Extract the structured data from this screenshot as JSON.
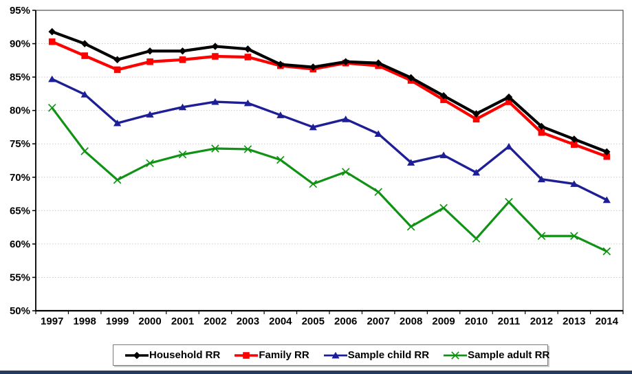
{
  "chart_data": {
    "type": "line",
    "title": "",
    "xlabel": "",
    "ylabel": "",
    "ylim": [
      50,
      95
    ],
    "ytick_step": 5,
    "grid": "horizontal-dotted",
    "legend_position": "bottom",
    "x": [
      1997,
      1998,
      1999,
      2000,
      2001,
      2002,
      2003,
      2004,
      2005,
      2006,
      2007,
      2008,
      2009,
      2010,
      2011,
      2012,
      2013,
      2014
    ],
    "x_tick_labels": [
      "1997",
      "1998",
      "1999",
      "2000",
      "2001",
      "2002",
      "2003",
      "2004",
      "2005",
      "2006",
      "2007",
      "2008",
      "2009",
      "2010",
      "2011",
      "2012",
      "2013",
      "2014"
    ],
    "y_tick_labels": [
      "95%",
      "90%",
      "85%",
      "80%",
      "75%",
      "70%",
      "65%",
      "60%",
      "55%",
      "50%"
    ],
    "series": [
      {
        "name": "Household RR",
        "color": "#000000",
        "marker": "diamond",
        "values": [
          91.8,
          90.0,
          87.6,
          88.9,
          88.9,
          89.6,
          89.2,
          86.9,
          86.5,
          87.3,
          87.1,
          84.9,
          82.2,
          79.5,
          82.0,
          77.6,
          75.7,
          73.8
        ]
      },
      {
        "name": "Family RR",
        "color": "#fe0000",
        "marker": "square",
        "values": [
          90.3,
          88.2,
          86.1,
          87.3,
          87.6,
          88.1,
          88.0,
          86.7,
          86.2,
          87.1,
          86.7,
          84.5,
          81.6,
          78.7,
          81.3,
          76.7,
          74.9,
          73.1
        ]
      },
      {
        "name": "Sample child RR",
        "color": "#1e1e96",
        "marker": "triangle",
        "values": [
          84.7,
          82.4,
          78.1,
          79.4,
          80.5,
          81.3,
          81.1,
          79.3,
          77.5,
          78.7,
          76.5,
          72.2,
          73.3,
          70.7,
          74.6,
          69.7,
          69.0,
          66.6
        ]
      },
      {
        "name": "Sample adult RR",
        "color": "#109314",
        "marker": "x",
        "values": [
          80.4,
          73.9,
          69.6,
          72.1,
          73.4,
          74.3,
          74.2,
          72.6,
          69.0,
          70.8,
          67.8,
          62.6,
          65.4,
          60.8,
          66.3,
          61.2,
          61.2,
          58.9
        ]
      }
    ]
  },
  "colors": {
    "grid": "#c9c9c9",
    "plot_border": "#4d4d4d",
    "axis": "#000000",
    "bottom_bar": "#253a5e"
  }
}
